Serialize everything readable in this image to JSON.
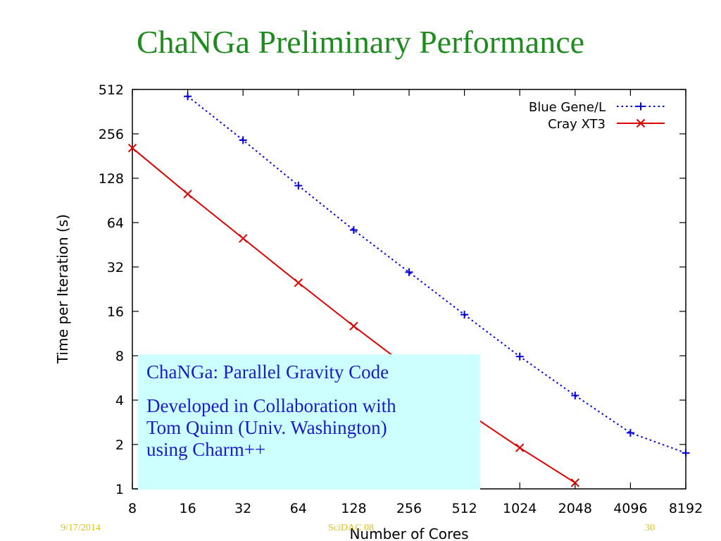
{
  "slide": {
    "title": "ChaNGa Preliminary Performance",
    "footer_date": "9/17/2014",
    "footer_center": "SciDAC 08",
    "footer_page": "30"
  },
  "info_box": {
    "line1": "ChaNGa: Parallel Gravity Code",
    "line2": "Developed in Collaboration with",
    "line3": "Tom Quinn (Univ. Washington)",
    "line4": "using Charm++"
  },
  "colors": {
    "title": "#1e8b1e",
    "blue_gene": "#0000dd",
    "cray": "#dd0000",
    "info_box_bg": "#ccffff",
    "info_box_text": "#1a1acc",
    "footer": "#e0c020"
  },
  "chart_data": {
    "type": "line",
    "title": "",
    "xlabel": "Number of Cores",
    "ylabel": "Time per Iteration (s)",
    "x_scale": "log2",
    "y_scale": "log2",
    "xlim": [
      8,
      8192
    ],
    "ylim": [
      1,
      512
    ],
    "x_ticks": [
      8,
      16,
      32,
      64,
      128,
      256,
      512,
      1024,
      2048,
      4096,
      8192
    ],
    "x_tick_labels": [
      "8",
      "16",
      "32",
      "64",
      "128",
      "256",
      "512",
      "1024",
      "2048",
      "4096",
      "8192"
    ],
    "y_ticks": [
      1,
      2,
      4,
      8,
      16,
      32,
      64,
      128,
      256,
      512
    ],
    "y_tick_labels": [
      "1",
      "2",
      "4",
      "8",
      "16",
      "32",
      "64",
      "128",
      "256",
      "512"
    ],
    "grid": false,
    "legend_position": "top-right",
    "series": [
      {
        "name": "Blue Gene/L",
        "color": "#0000dd",
        "line_style": "dotted",
        "marker": "plus",
        "x": [
          16,
          32,
          64,
          128,
          256,
          512,
          1024,
          2048,
          4096,
          8192
        ],
        "y": [
          460,
          232,
          114,
          57,
          29.5,
          15.2,
          7.9,
          4.3,
          2.4,
          1.75
        ]
      },
      {
        "name": "Cray XT3",
        "color": "#dd0000",
        "line_style": "solid",
        "marker": "x",
        "x": [
          8,
          16,
          32,
          64,
          128,
          256,
          512,
          1024,
          2048
        ],
        "y": [
          205,
          100,
          50,
          25,
          12.7,
          6.6,
          3.4,
          1.9,
          1.1
        ]
      }
    ]
  }
}
